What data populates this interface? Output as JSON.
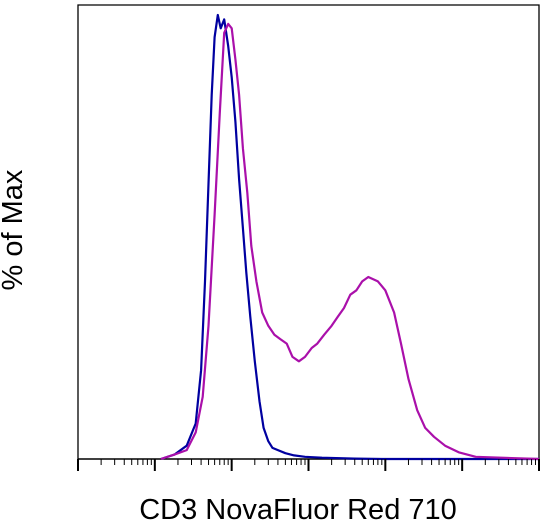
{
  "chart_data": {
    "type": "line",
    "title": "",
    "xlabel": "CD3 NovaFluor Red 710",
    "ylabel": "% of Max",
    "x_scale": "log",
    "xlim": [
      0.1,
      100000
    ],
    "ylim": [
      0,
      100
    ],
    "grid": false,
    "legend": "none",
    "series": [
      {
        "color": "#0000a0",
        "x": [
          1.2,
          1.8,
          2.6,
          3.4,
          4.0,
          4.5,
          5.0,
          5.5,
          6.0,
          6.6,
          7.2,
          8.0,
          9.0,
          10.0,
          11.2,
          12.5,
          14.0,
          15.5,
          17.5,
          20,
          23,
          26,
          30,
          34,
          40,
          50,
          65,
          90,
          150,
          400,
          1000,
          10000,
          100000
        ],
        "y": [
          0,
          1,
          3,
          8,
          20,
          40,
          62,
          82,
          95,
          100,
          97,
          99,
          93,
          86,
          76,
          63,
          52,
          42,
          32,
          22,
          13,
          7,
          4,
          2.5,
          2,
          1.3,
          0.8,
          0.5,
          0.3,
          0.1,
          0,
          0,
          0
        ]
      },
      {
        "color": "#aa10aa",
        "x": [
          1.2,
          1.8,
          2.6,
          3.4,
          4.2,
          5.0,
          6.0,
          7.0,
          8.0,
          9.0,
          10.0,
          11.2,
          12.5,
          14.0,
          16.0,
          18.0,
          21,
          25,
          30,
          36,
          43,
          52,
          62,
          75,
          90,
          110,
          130,
          160,
          200,
          240,
          290,
          350,
          420,
          500,
          600,
          800,
          1000,
          1300,
          1600,
          2000,
          2600,
          3300,
          4300,
          6000,
          9000,
          15000,
          100000
        ],
        "y": [
          0,
          1,
          2,
          6,
          14,
          30,
          55,
          78,
          96,
          98,
          97,
          90,
          82,
          70,
          60,
          48,
          40,
          33,
          30,
          28,
          27,
          26,
          23,
          22,
          23,
          25,
          26,
          28,
          30,
          32,
          34,
          37,
          38,
          40,
          41,
          40,
          38,
          33,
          26,
          18,
          11,
          7,
          5,
          3,
          1.5,
          0.5,
          0
        ]
      }
    ]
  }
}
